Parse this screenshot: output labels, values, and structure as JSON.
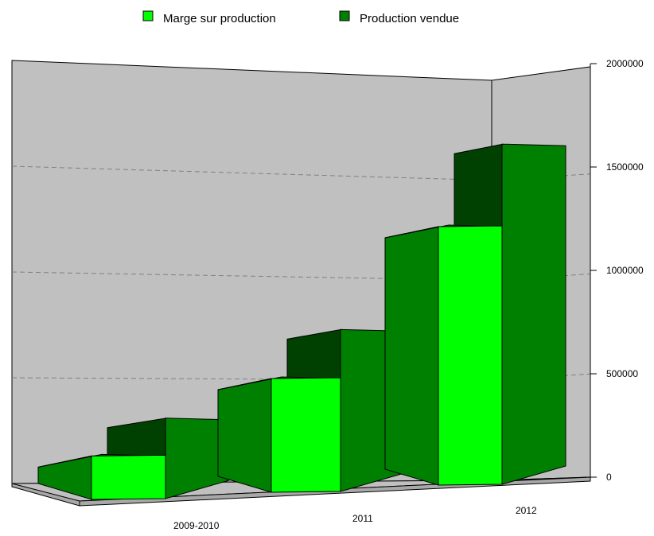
{
  "chart_data": {
    "type": "bar",
    "categories": [
      "2009-2010",
      "2011",
      "2012"
    ],
    "series": [
      {
        "name": "Marge sur production",
        "values": [
          210000,
          550000,
          1250000
        ],
        "color": "#00ff00"
      },
      {
        "name": "Production vendue",
        "values": [
          320000,
          760000,
          1630000
        ],
        "color": "#008000"
      }
    ],
    "ylim": [
      0,
      2000000
    ],
    "yticks": [
      "0",
      "500000",
      "1000000",
      "1500000",
      "2000000"
    ],
    "title": "",
    "xlabel": "",
    "ylabel": "",
    "grid": true,
    "legend_position": "top",
    "colors": {
      "wall": "#c0c0c0",
      "floor": "#c0c0c0",
      "bar_dark_top": "#004000",
      "bar_side": "#008000"
    }
  }
}
